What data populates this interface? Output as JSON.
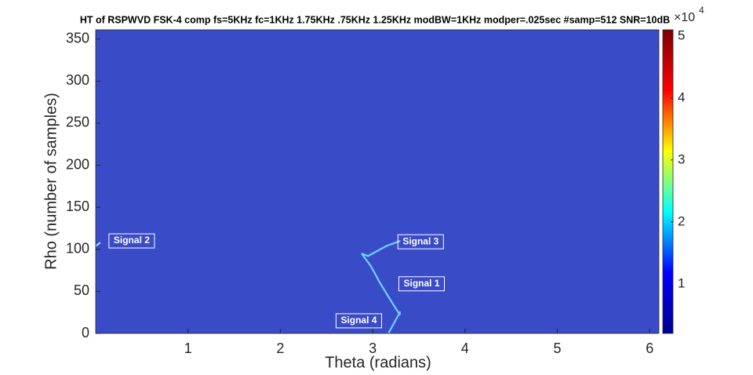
{
  "chart_data": {
    "type": "heatmap",
    "title": "HT of RSPWVD FSK-4 comp fs=5KHz fc=1KHz 1.75KHz .75KHz 1.25KHz modBW=1KHz modper=.025sec #samp=512 SNR=10dB",
    "x_label": "Theta (radians)",
    "y_label": "Rho (number of samples)",
    "xlim": [
      0,
      6.1
    ],
    "xticks": [
      1,
      2,
      3,
      4,
      5,
      6
    ],
    "ylim": [
      0,
      361
    ],
    "yticks": [
      0,
      50,
      100,
      150,
      200,
      250,
      300,
      350
    ],
    "background_color": "#3a4bc8",
    "colormap": [
      "#00008f",
      "#0000ff",
      "#00ffff",
      "#ffff00",
      "#ff0000",
      "#800000"
    ],
    "colorbar_lim": [
      0.2,
      5.1
    ],
    "colorbar_ticks": [
      1,
      2,
      3,
      4,
      5
    ],
    "colorbar_multiplier": "×10",
    "colorbar_exponent": "4",
    "series": [
      {
        "color": "#6fd0ff",
        "x": [
          2.88,
          2.98,
          3.08,
          3.18,
          3.26,
          3.3
        ],
        "values": [
          95,
          80,
          60,
          42,
          28,
          22
        ]
      },
      {
        "color": "#6fd0ff",
        "x": [
          2.88,
          2.95,
          3.05,
          3.15,
          3.25,
          3.3
        ],
        "values": [
          95,
          92,
          98,
          104,
          108,
          110
        ]
      },
      {
        "color": "#6fd0ff",
        "x": [
          3.17,
          3.22,
          3.27,
          3.3
        ],
        "values": [
          0,
          10,
          20,
          26
        ]
      },
      {
        "color": "#8fe0ff",
        "x": [
          0,
          0.05
        ],
        "values": [
          104,
          108
        ]
      }
    ],
    "annotations": [
      {
        "text": "Signal 2",
        "x": 0.39,
        "y": 110
      },
      {
        "text": "Signal 3",
        "x": 3.52,
        "y": 109
      },
      {
        "text": "Signal 1",
        "x": 3.53,
        "y": 59
      },
      {
        "text": "Signal 4",
        "x": 2.85,
        "y": 15
      }
    ]
  }
}
